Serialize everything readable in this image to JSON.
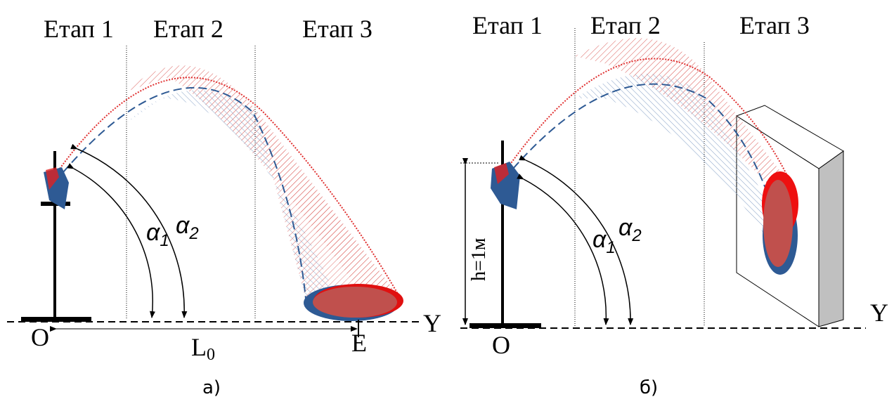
{
  "panels": [
    {
      "stages": [
        "Етап 1",
        "Етап 2",
        "Етап 3"
      ],
      "angles": [
        {
          "symbol": "α",
          "sub": "1"
        },
        {
          "symbol": "α",
          "sub": "2"
        }
      ],
      "axis": "Y",
      "origin": "O",
      "distance": {
        "symbol": "L",
        "sub": "0"
      },
      "end": "E",
      "caption": "а)"
    },
    {
      "stages": [
        "Етап 1",
        "Етап 2",
        "Етап 3"
      ],
      "height": "h=1м",
      "angles": [
        {
          "symbol": "α",
          "sub": "1"
        },
        {
          "symbol": "α",
          "sub": "2"
        }
      ],
      "axis": "Y",
      "origin": "O",
      "caption": "б)"
    }
  ]
}
